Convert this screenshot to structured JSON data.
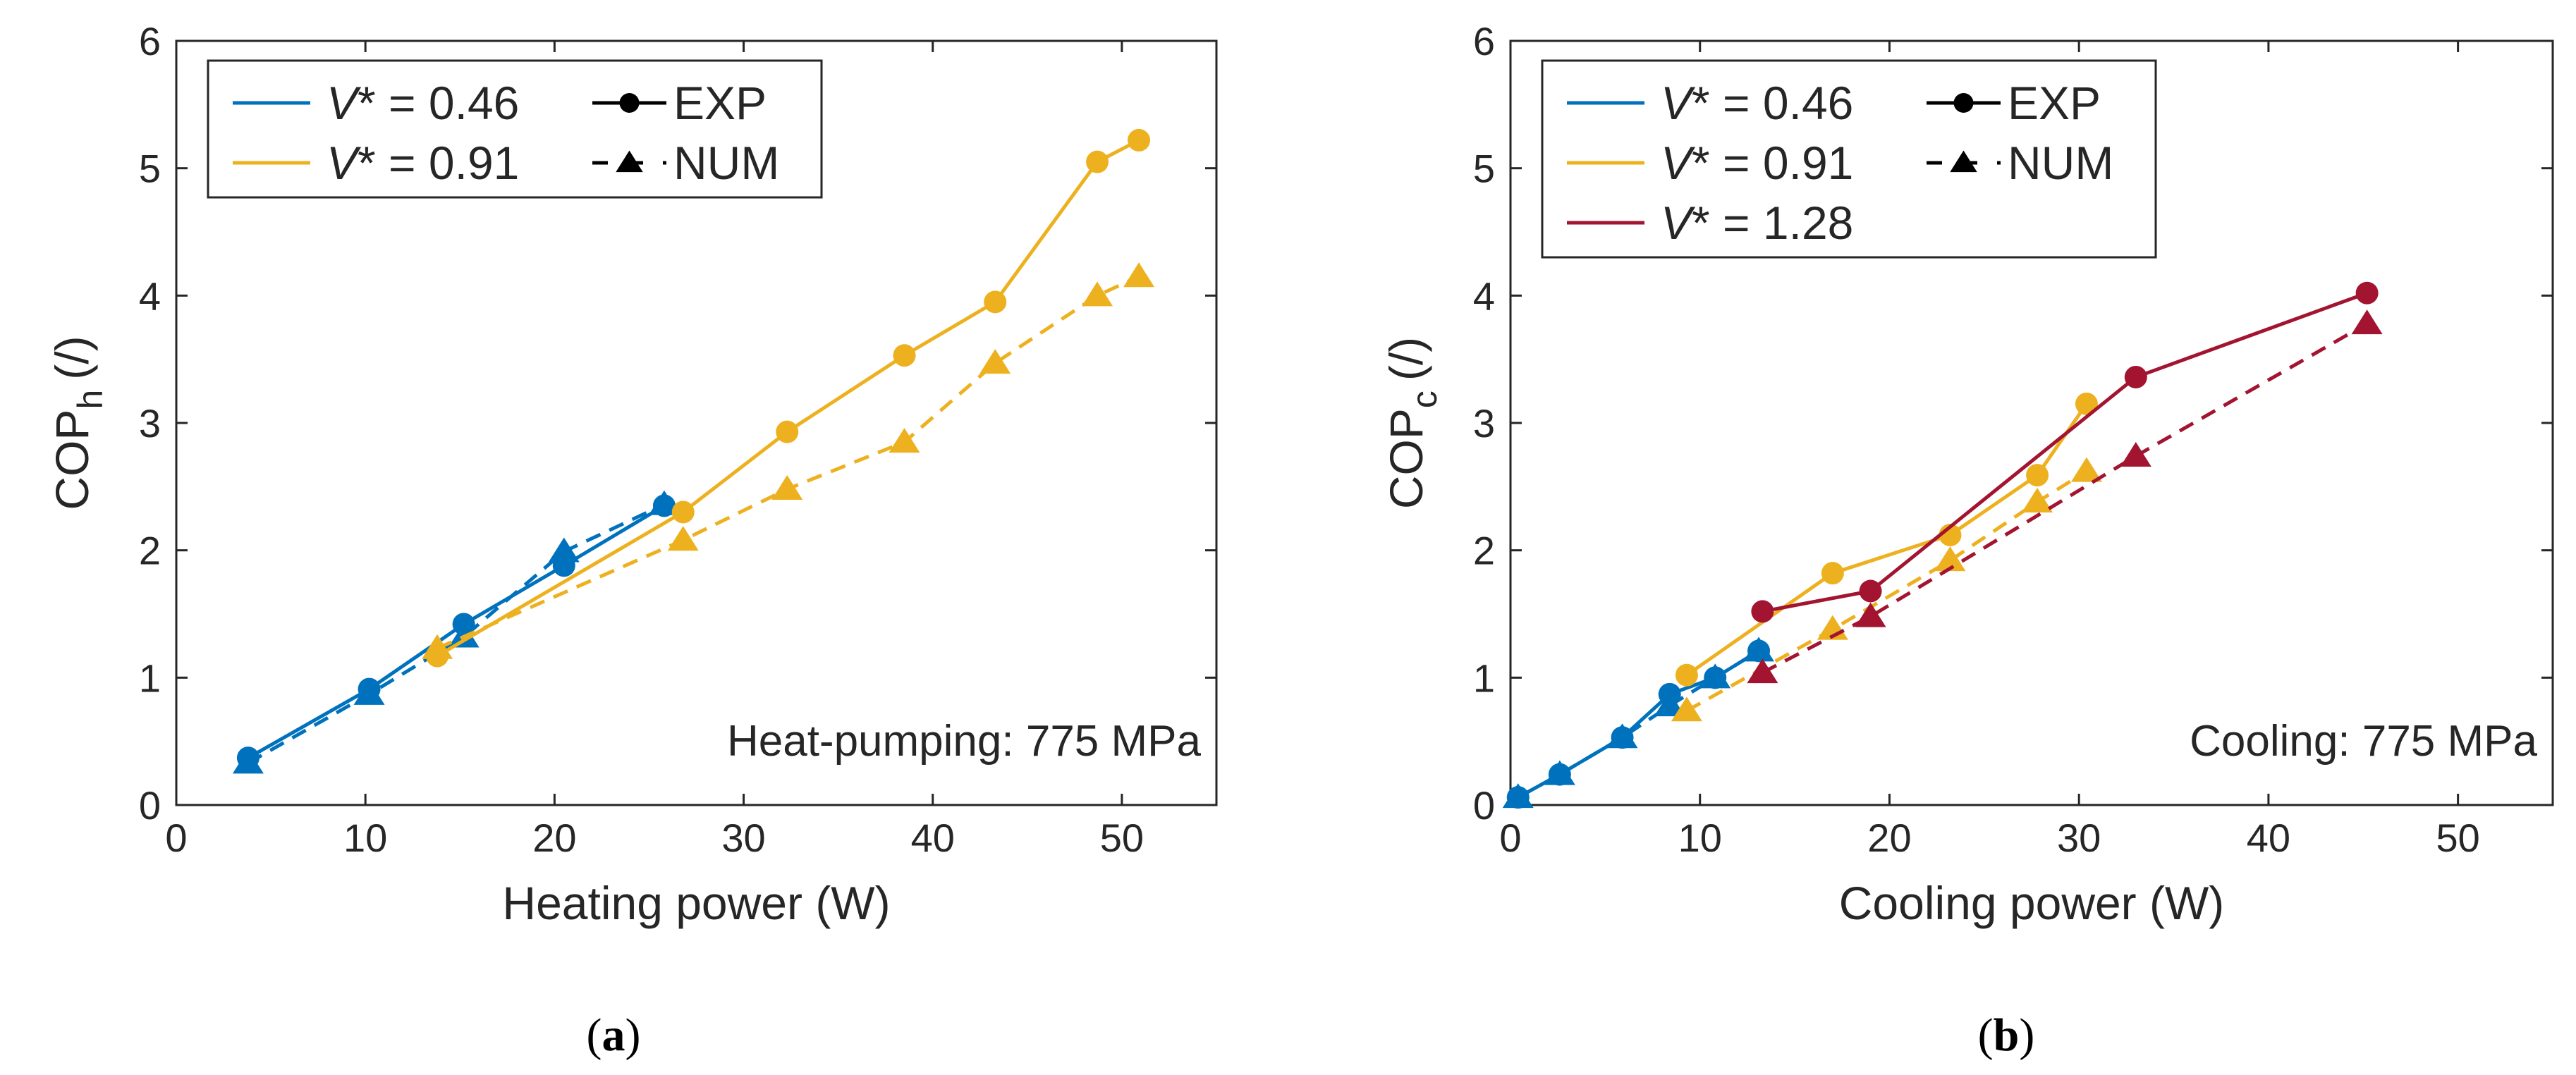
{
  "colors": {
    "blue": "#0072BD",
    "orange": "#EDB120",
    "red": "#A2142F",
    "axis": "#262626"
  },
  "chart_data": [
    {
      "type": "line",
      "panel": "a",
      "caption_label": "a",
      "xlabel": "Heating power (W)",
      "ylabel_main": "COP",
      "ylabel_sub": "h",
      "ylabel_unit": "(/)",
      "xlim": [
        0,
        55
      ],
      "ylim": [
        0,
        6
      ],
      "xticks": [
        0,
        10,
        20,
        30,
        40,
        50
      ],
      "yticks": [
        0,
        1,
        2,
        3,
        4,
        5,
        6
      ],
      "annotation": "Heat-pumping: 775 MPa",
      "legend_position": "top-left",
      "legend": {
        "series": [
          {
            "label_var": "V",
            "label_rest": "* = 0.46",
            "color": "#0072BD"
          },
          {
            "label_var": "V",
            "label_rest": "* = 0.91",
            "color": "#EDB120"
          }
        ],
        "styles": [
          {
            "label": "EXP",
            "style": "solid",
            "marker": "circle"
          },
          {
            "label": "NUM",
            "style": "dashed",
            "marker": "triangle"
          }
        ]
      },
      "series": [
        {
          "name": "V* = 0.46 EXP",
          "color": "#0072BD",
          "style": "solid",
          "marker": "circle",
          "x": [
            3.8,
            10.2,
            15.2,
            20.5,
            25.8
          ],
          "y": [
            0.37,
            0.91,
            1.42,
            1.88,
            2.35
          ]
        },
        {
          "name": "V* = 0.46 NUM",
          "color": "#0072BD",
          "style": "dashed",
          "marker": "triangle",
          "x": [
            3.8,
            10.2,
            15.2,
            20.5,
            25.8
          ],
          "y": [
            0.33,
            0.87,
            1.32,
            1.99,
            2.36
          ]
        },
        {
          "name": "V* = 0.91 EXP",
          "color": "#EDB120",
          "style": "solid",
          "marker": "circle",
          "x": [
            13.8,
            26.8,
            32.3,
            38.5,
            43.3,
            48.7,
            50.9
          ],
          "y": [
            1.17,
            2.3,
            2.93,
            3.53,
            3.95,
            5.05,
            5.22
          ]
        },
        {
          "name": "V* = 0.91 NUM",
          "color": "#EDB120",
          "style": "dashed",
          "marker": "triangle",
          "x": [
            13.8,
            26.8,
            32.3,
            38.5,
            43.3,
            48.7,
            50.9
          ],
          "y": [
            1.23,
            2.08,
            2.48,
            2.85,
            3.47,
            4.0,
            4.15
          ]
        }
      ]
    },
    {
      "type": "line",
      "panel": "b",
      "caption_label": "b",
      "xlabel": "Cooling power (W)",
      "ylabel_main": "COP",
      "ylabel_sub": "c",
      "ylabel_unit": "(/)",
      "xlim": [
        0,
        55
      ],
      "ylim": [
        0,
        6
      ],
      "xticks": [
        0,
        10,
        20,
        30,
        40,
        50
      ],
      "yticks": [
        0,
        1,
        2,
        3,
        4,
        5,
        6
      ],
      "annotation": "Cooling: 775 MPa",
      "legend_position": "top-left",
      "legend": {
        "series": [
          {
            "label_var": "V",
            "label_rest": "* = 0.46",
            "color": "#0072BD"
          },
          {
            "label_var": "V",
            "label_rest": "* = 0.91",
            "color": "#EDB120"
          },
          {
            "label_var": "V",
            "label_rest": "* = 1.28",
            "color": "#A2142F"
          }
        ],
        "styles": [
          {
            "label": "EXP",
            "style": "solid",
            "marker": "circle"
          },
          {
            "label": "NUM",
            "style": "dashed",
            "marker": "triangle"
          }
        ]
      },
      "series": [
        {
          "name": "V* = 0.46 EXP",
          "color": "#0072BD",
          "style": "solid",
          "marker": "circle",
          "x": [
            0.4,
            2.6,
            5.9,
            8.4,
            10.8,
            13.1
          ],
          "y": [
            0.06,
            0.24,
            0.53,
            0.87,
            1.0,
            1.21
          ]
        },
        {
          "name": "V* = 0.46 NUM",
          "color": "#0072BD",
          "style": "dashed",
          "marker": "triangle",
          "x": [
            0.4,
            2.6,
            5.9,
            8.4,
            10.8,
            13.1
          ],
          "y": [
            0.06,
            0.24,
            0.53,
            0.78,
            1.0,
            1.21
          ]
        },
        {
          "name": "V* = 0.91 EXP",
          "color": "#EDB120",
          "style": "solid",
          "marker": "circle",
          "x": [
            9.3,
            17.0,
            23.2,
            27.8,
            30.4
          ],
          "y": [
            1.02,
            1.82,
            2.12,
            2.59,
            3.15
          ]
        },
        {
          "name": "V* = 0.91 NUM",
          "color": "#EDB120",
          "style": "dashed",
          "marker": "triangle",
          "x": [
            9.3,
            17.0,
            23.2,
            27.8,
            30.4
          ],
          "y": [
            0.74,
            1.38,
            1.92,
            2.38,
            2.62
          ]
        },
        {
          "name": "V* = 1.28 EXP",
          "color": "#A2142F",
          "style": "solid",
          "marker": "circle",
          "x": [
            13.3,
            19.0,
            33.0,
            45.2
          ],
          "y": [
            1.52,
            1.68,
            3.36,
            4.02
          ]
        },
        {
          "name": "V* = 1.28 NUM",
          "color": "#A2142F",
          "style": "dashed",
          "marker": "triangle",
          "x": [
            13.3,
            19.0,
            33.0,
            45.2
          ],
          "y": [
            1.04,
            1.48,
            2.74,
            3.78
          ]
        }
      ]
    }
  ]
}
